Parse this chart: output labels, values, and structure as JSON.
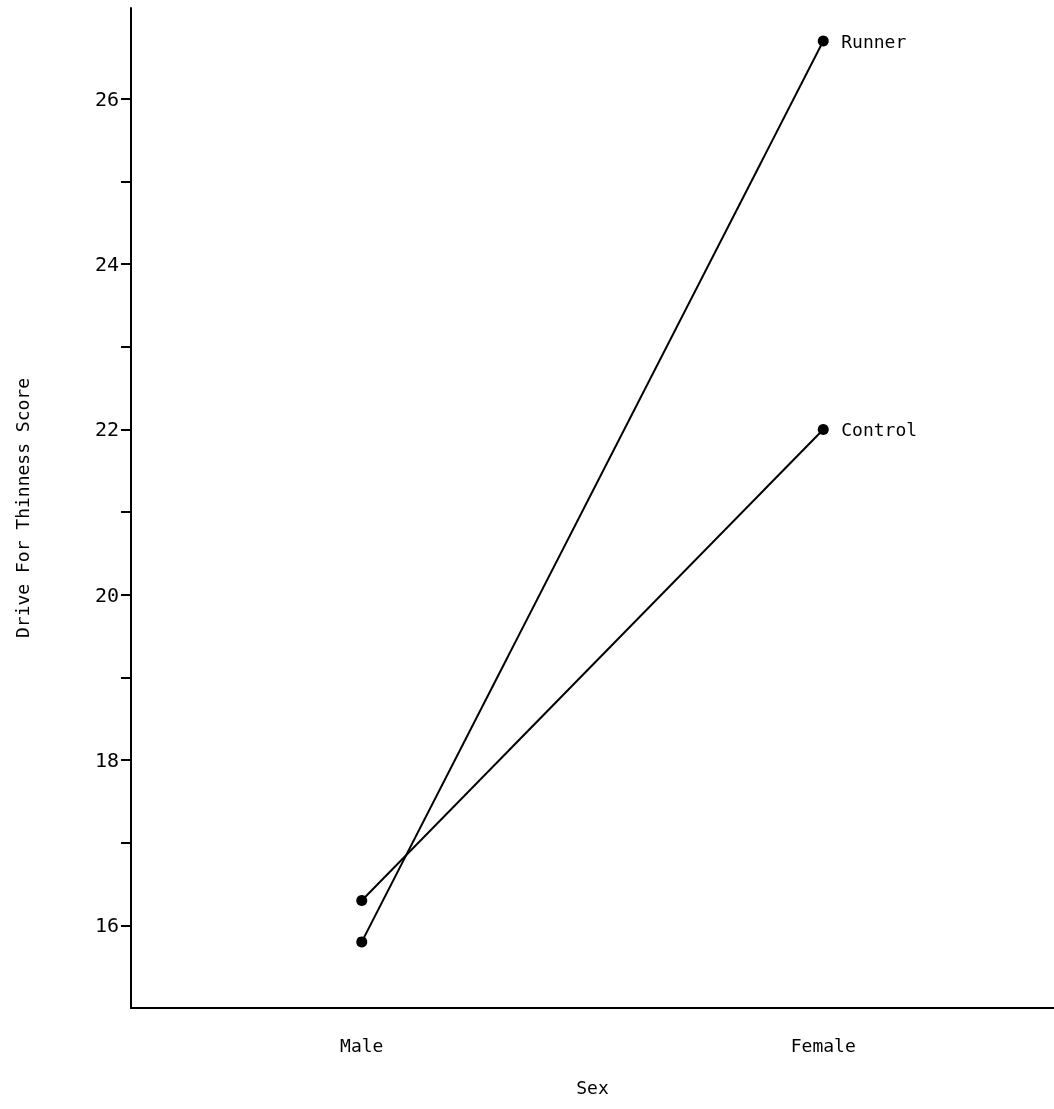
{
  "chart_data": {
    "type": "line",
    "xlabel": "Sex",
    "ylabel": "Drive For Thinness Score",
    "categories": [
      "Male",
      "Female"
    ],
    "series": [
      {
        "name": "Runner",
        "color": "#000000",
        "values": [
          15.8,
          26.7
        ]
      },
      {
        "name": "Control",
        "color": "#000000",
        "values": [
          16.3,
          22.0
        ]
      }
    ],
    "ylim": [
      15,
      27.1
    ],
    "yticks": [
      16,
      {
        "value": 17,
        "label": null
      },
      18,
      {
        "value": 19,
        "label": null
      },
      20,
      {
        "value": 21,
        "label": null
      },
      22,
      {
        "value": 23,
        "label": null
      },
      24,
      {
        "value": 25,
        "label": null
      },
      26
    ],
    "grid": false,
    "legend": false,
    "marker": "circle",
    "line_style": "solid"
  }
}
